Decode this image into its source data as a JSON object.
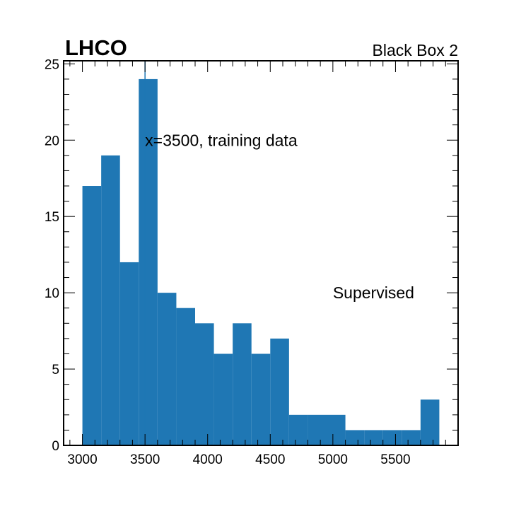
{
  "chart_data": {
    "type": "bar",
    "title_left": "LHCO",
    "title_right": "Black Box 2",
    "xlabel": "",
    "ylabel": "",
    "xlim": [
      2850,
      6000
    ],
    "ylim": [
      0,
      25.2
    ],
    "xticks": [
      3000,
      3500,
      4000,
      4500,
      5000,
      5500
    ],
    "yticks": [
      0,
      5,
      10,
      15,
      20,
      25
    ],
    "bar_color": "#1f77b4",
    "bins": [
      {
        "x0": 3000,
        "x1": 3150,
        "value": 17
      },
      {
        "x0": 3150,
        "x1": 3300,
        "value": 19
      },
      {
        "x0": 3300,
        "x1": 3450,
        "value": 12
      },
      {
        "x0": 3450,
        "x1": 3600,
        "value": 24
      },
      {
        "x0": 3600,
        "x1": 3750,
        "value": 10
      },
      {
        "x0": 3750,
        "x1": 3900,
        "value": 9
      },
      {
        "x0": 3900,
        "x1": 4050,
        "value": 8
      },
      {
        "x0": 4050,
        "x1": 4200,
        "value": 6
      },
      {
        "x0": 4200,
        "x1": 4350,
        "value": 8
      },
      {
        "x0": 4350,
        "x1": 4500,
        "value": 6
      },
      {
        "x0": 4500,
        "x1": 4650,
        "value": 7
      },
      {
        "x0": 4650,
        "x1": 4800,
        "value": 2
      },
      {
        "x0": 4800,
        "x1": 4950,
        "value": 2
      },
      {
        "x0": 4950,
        "x1": 5100,
        "value": 2
      },
      {
        "x0": 5100,
        "x1": 5250,
        "value": 1
      },
      {
        "x0": 5250,
        "x1": 5400,
        "value": 1
      },
      {
        "x0": 5400,
        "x1": 5550,
        "value": 1
      },
      {
        "x0": 5550,
        "x1": 5700,
        "value": 1
      },
      {
        "x0": 5700,
        "x1": 5850,
        "value": 3
      }
    ],
    "vertical_line_x": 3500,
    "annotations": [
      {
        "text": "x=3500, training data",
        "x": 3500,
        "y": 20
      },
      {
        "text": "Supervised",
        "x": 5000,
        "y": 10
      }
    ]
  }
}
